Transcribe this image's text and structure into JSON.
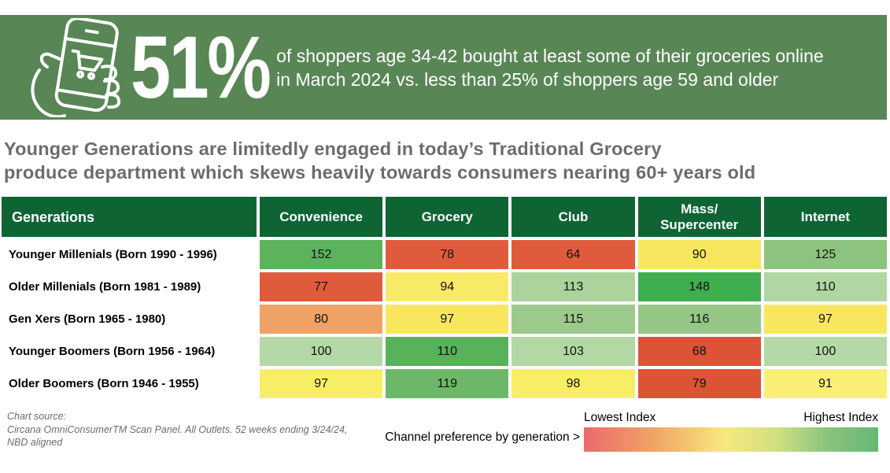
{
  "banner": {
    "stat": "51%",
    "description_line1": "of shoppers age 34-42 bought at least some of their groceries online",
    "description_line2": "in March 2024 vs. less than 25% of shoppers age 59 and older",
    "icon": "hand-holding-phone-with-shopping-cart-icon"
  },
  "title": {
    "line1": "Younger Generations are limitedly engaged in today’s Traditional Grocery",
    "line2": "produce department which skews heavily towards consumers nearing 60+ years old"
  },
  "chart_data": {
    "type": "heatmap",
    "title": "Younger Generations are limitedly engaged in today’s Traditional Grocery produce department which skews heavily towards consumers nearing 60+ years old",
    "row_header": "Generations",
    "columns": [
      "Convenience",
      "Grocery",
      "Club",
      "Mass/\nSupercenter",
      "Internet"
    ],
    "rows": [
      {
        "label": "Younger Millenials (Born 1990 - 1996)",
        "values": [
          152,
          78,
          64,
          90,
          125
        ],
        "cell_colors": [
          "#5cb35c",
          "#df5b3c",
          "#df5b3c",
          "#f8e75e",
          "#8cc47e"
        ]
      },
      {
        "label": "Older Millenials (Born 1981 - 1989)",
        "values": [
          77,
          94,
          113,
          148,
          110
        ],
        "cell_colors": [
          "#df5b3c",
          "#f8e966",
          "#abd39c",
          "#3fae4e",
          "#b0d6a2"
        ]
      },
      {
        "label": "Gen Xers (Born 1965 - 1980)",
        "values": [
          80,
          97,
          115,
          116,
          97
        ],
        "cell_colors": [
          "#efa263",
          "#f8e75e",
          "#9cca8c",
          "#94c786",
          "#f8e75e"
        ]
      },
      {
        "label": "Younger Boomers (Born 1956 - 1964)",
        "values": [
          100,
          110,
          103,
          68,
          100
        ],
        "cell_colors": [
          "#b5d9a6",
          "#57b25a",
          "#b2d8a4",
          "#dd5335",
          "#b5d9a6"
        ]
      },
      {
        "label": "Older Boomers (Born 1946 - 1955)",
        "values": [
          97,
          119,
          98,
          79,
          91
        ],
        "cell_colors": [
          "#f8ed66",
          "#6cb868",
          "#f8ed66",
          "#dd5335",
          "#f9ee76"
        ]
      }
    ],
    "legend": {
      "low_label": "Lowest Index",
      "high_label": "Highest Index"
    },
    "legend_position": "bottom-right",
    "color_scale_note": "row-wise index scale, red = lowest, green = highest"
  },
  "footer": {
    "source_line1": "Chart source:",
    "source_line2": "Circana OmniConsumerTM Scan Panel. All Outlets. 52 weeks ending 3/24/24,",
    "source_line3": "NBD aligned",
    "note": "Channel preference by generation >"
  },
  "colors": {
    "banner_bg": "#588755",
    "header_bg": "#0f6434",
    "title_color": "#6b6c6f",
    "source_color": "#6b6c6f",
    "legend_gradient": [
      "#ec696c",
      "#f0a066",
      "#f8e87e",
      "#cfe083",
      "#8cc57e",
      "#63b873"
    ]
  }
}
